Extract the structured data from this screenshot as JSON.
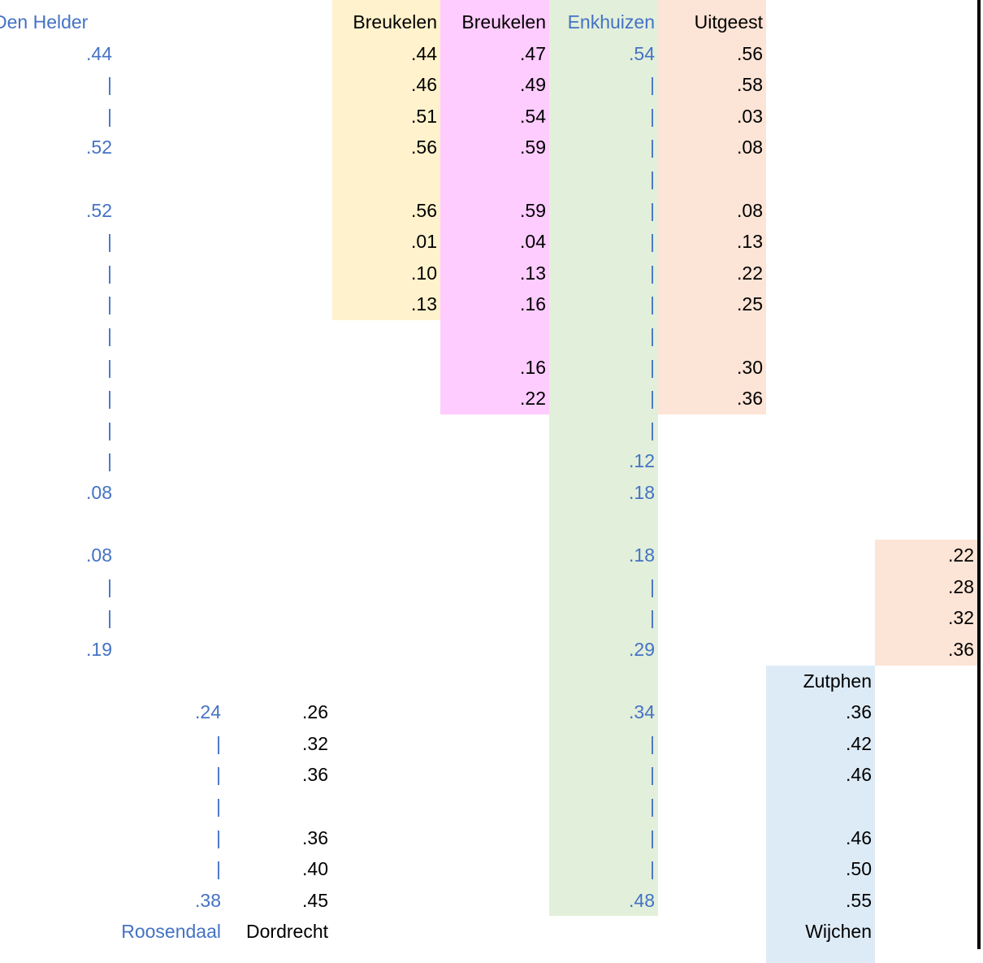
{
  "colors": {
    "blue_text": "#4472C4",
    "black_text": "#000000",
    "yellow_fill": "#FFF2CC",
    "pink_fill": "#FFCCFF",
    "green_fill": "#E2EFDA",
    "peach_fill": "#FCE4D6",
    "lightblue_fill": "#DDEBF7",
    "border": "#000000"
  },
  "columns": {
    "den_helder": {
      "header": "Den Helder",
      "values": [
        ".44",
        "|",
        "|",
        ".52",
        "",
        ".52",
        "|",
        "|",
        "|",
        "|",
        "|",
        "|",
        "|",
        "|",
        ".08",
        "",
        ".08",
        "|",
        "|",
        ".19"
      ]
    },
    "breukelen_1": {
      "header": "Breukelen",
      "values": [
        ".44",
        ".46",
        ".51",
        ".56",
        "",
        ".56",
        ".01",
        ".10",
        ".13"
      ]
    },
    "breukelen_2": {
      "header": "Breukelen",
      "values": [
        ".47",
        ".49",
        ".54",
        ".59",
        "",
        ".59",
        ".04",
        ".13",
        ".16",
        "",
        ".16",
        ".22"
      ]
    },
    "enkhuizen": {
      "header": "Enkhuizen",
      "values": [
        ".54",
        "|",
        "|",
        "|",
        "|",
        "|",
        "|",
        "|",
        "|",
        "|",
        "|",
        "|",
        "|",
        ".12",
        ".18",
        "",
        ".18",
        "|",
        "|",
        ".29",
        "",
        ".34",
        "|",
        "|",
        "|",
        "|",
        "|",
        ".48"
      ]
    },
    "uitgeest": {
      "header": "Uitgeest",
      "values": [
        ".56",
        ".58",
        ".03",
        ".08",
        "",
        ".08",
        ".13",
        ".22",
        ".25",
        "",
        ".30",
        ".36"
      ]
    },
    "far_right": {
      "values": [
        ".22",
        ".28",
        ".32",
        ".36"
      ]
    },
    "roosendaal": {
      "footer": "Roosendaal",
      "values": [
        ".24",
        "|",
        "|",
        "|",
        "|",
        "|",
        ".38"
      ]
    },
    "dordrecht": {
      "footer": "Dordrecht",
      "values": [
        ".26",
        ".32",
        ".36",
        "",
        ".36",
        ".40",
        ".45"
      ]
    },
    "zutphen_wijchen": {
      "header": "Zutphen",
      "footer": "Wijchen",
      "values": [
        ".36",
        ".42",
        ".46",
        "",
        ".46",
        ".50",
        ".55"
      ]
    }
  }
}
